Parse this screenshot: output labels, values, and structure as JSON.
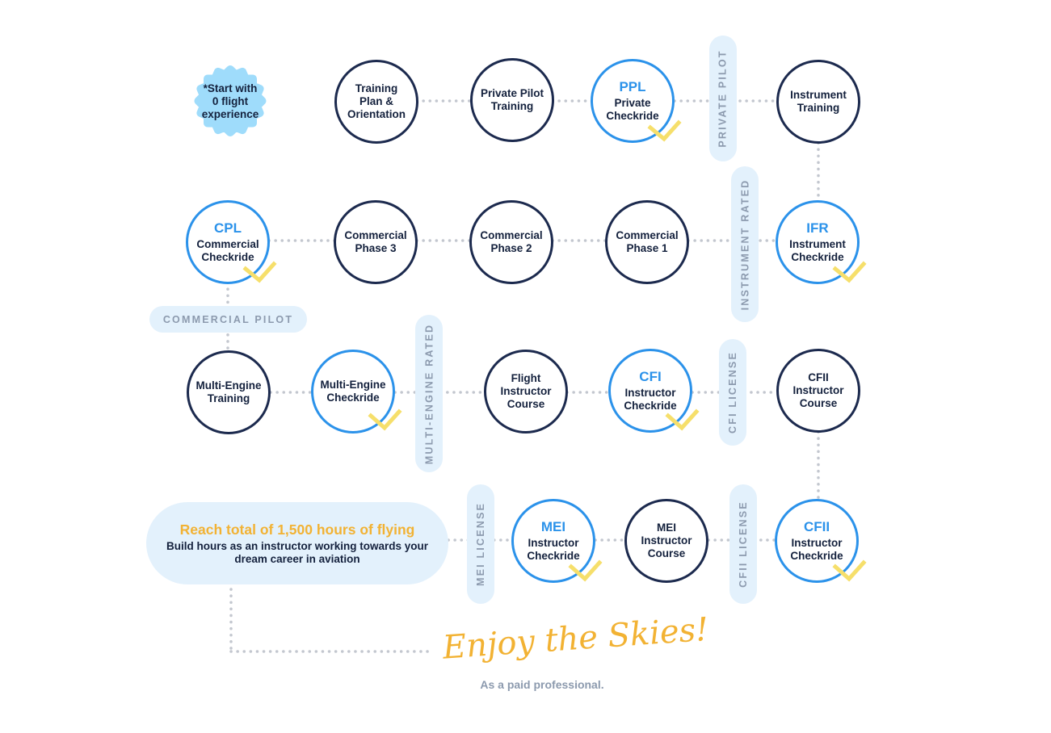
{
  "start": {
    "label": "*Start with\n0 flight\nexperience"
  },
  "nodes": {
    "training_plan": {
      "label": "Training\nPlan &\nOrientation"
    },
    "private_pilot_training": {
      "label": "Private Pilot\nTraining"
    },
    "ppl": {
      "code": "PPL",
      "label": "Private\nCheckride"
    },
    "instrument_training": {
      "label": "Instrument\nTraining"
    },
    "cpl": {
      "code": "CPL",
      "label": "Commercial\nCheckride"
    },
    "commercial_phase_3": {
      "label": "Commercial\nPhase 3"
    },
    "commercial_phase_2": {
      "label": "Commercial\nPhase 2"
    },
    "commercial_phase_1": {
      "label": "Commercial\nPhase 1"
    },
    "ifr": {
      "code": "IFR",
      "label": "Instrument\nCheckride"
    },
    "multi_engine_training": {
      "label": "Multi-Engine\nTraining"
    },
    "multi_engine_checkride": {
      "label": "Multi-Engine\nCheckride"
    },
    "flight_instructor_course": {
      "label": "Flight\nInstructor\nCourse"
    },
    "cfi": {
      "code": "CFI",
      "label": "Instructor\nCheckride"
    },
    "cfii_course": {
      "label": "CFII\nInstructor\nCourse"
    },
    "mei": {
      "code": "MEI",
      "label": "Instructor\nCheckride"
    },
    "mei_course": {
      "label": "MEI\nInstructor\nCourse"
    },
    "cfii": {
      "code": "CFII",
      "label": "Instructor\nCheckride"
    }
  },
  "badges": {
    "private_pilot": "PRIVATE PILOT",
    "instrument_rated": "INSTRUMENT RATED",
    "commercial_pilot": "COMMERCIAL PILOT",
    "multi_engine_rated": "MULTI-ENGINE RATED",
    "cfi_license": "CFI LICENSE",
    "mei_license": "MEI LICENSE",
    "cfii_license": "CFII LICENSE"
  },
  "goal": {
    "title": "Reach total of 1,500 hours of flying",
    "subtitle": "Build hours as an instructor working towards your dream career in aviation"
  },
  "finale": {
    "headline": "Enjoy the Skies!",
    "subtitle": "As a paid professional."
  },
  "colors": {
    "dark_ring": "#1c2a4e",
    "blue_ring": "#2b92ea",
    "check": "#f6df6b",
    "badge_bg": "#e3f1fc",
    "badge_text": "#8c9aae",
    "start_badge": "#9fdcfb",
    "accent_gold": "#f2b233",
    "connector": "#c3c7cf"
  }
}
